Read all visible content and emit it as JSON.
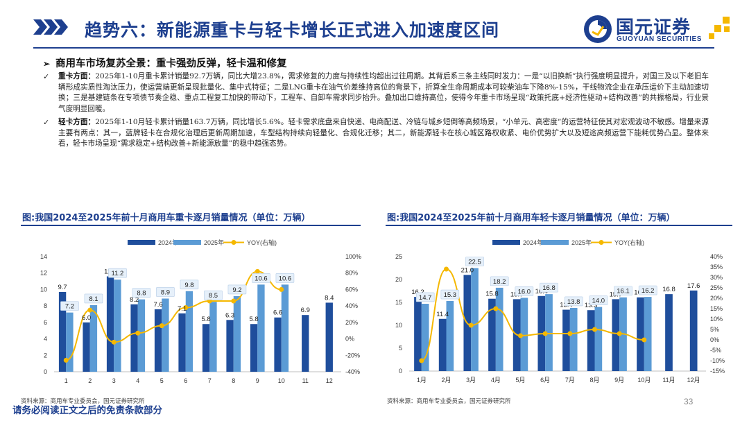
{
  "header": {
    "title": "趋势六：新能源重卡与轻卡增长正式进入加速度区间",
    "logo_cn": "国元证券",
    "logo_en": "GUOYUAN SECURITIES"
  },
  "section": {
    "subtitle": "商用车市场复苏全景：重卡强劲反弹，轻卡温和修复",
    "para1_label": "重卡方面：",
    "para1_text": "2025年1-10月重卡累计销量92.7万辆，同比大增23.8%，需求修复的力度与持续性均超出过往周期。其背后系三条主线同时发力：一是“以旧换新”执行强度明显提升，对国三及以下老旧车辆形成实质性淘汰压力，使运营端更新呈现批量化、集中式特征；二是LNG重卡在油气价差维持高位的背景下，折算全生命周期成本可较柴油车下降8%-15%，干线物流企业在承压运价下主动加速切换；三是基建链条在专项债节奏企稳、重点工程复工加快的带动下，工程车、自卸车需求同步抬升。叠加出口维持高位，使得今年重卡市场呈现“政策托底+经济性驱动+结构改善”的共振格局，行业景气度明显回暖。",
    "para2_label": "轻卡方面：",
    "para2_text": "2025年1-10月轻卡累计销量163.7万辆，同比增长5.6%。轻卡需求底盘来自快递、电商配送、冷链与城乡短倒等高频场景，“小单元、高密度”的运营特征使其对宏观波动不敏感。增量来源主要有两点：其一，蓝牌轻卡在合规化治理后更新周期加速，车型结构持续向轻量化、合规化迁移；其二，新能源轻卡在核心城区路权收紧、电价优势扩大以及短途高频运营下能耗优势凸显。整体来看，轻卡市场呈现“需求稳定+结构改善+新能源放量”的稳中趋强态势。"
  },
  "charts_meta": {
    "left_title": "图:我国2024至2025年前十月商用车重卡逐月销量情况（单位：万辆）",
    "right_title": "图:我国2024至2025年前十月商用车轻卡逐月销量情况（单位：万辆）",
    "left_source": "资料来源：商用车专业委员会，国元证券研究所",
    "right_source": "资料来源：商用车专业委员会，国元证券研究所"
  },
  "chart_data": [
    {
      "type": "bar",
      "title": "重卡逐月销量",
      "categories": [
        "1",
        "2",
        "3",
        "4",
        "5",
        "6",
        "7",
        "8",
        "9",
        "10",
        "11",
        "12"
      ],
      "series": [
        {
          "name": "2024年",
          "type": "bar",
          "values": [
            9.7,
            6.0,
            11.6,
            8.2,
            7.6,
            7.1,
            5.8,
            6.3,
            5.8,
            6.6,
            6.9,
            8.4
          ]
        },
        {
          "name": "2025年",
          "type": "bar",
          "values": [
            7.2,
            8.1,
            11.2,
            8.8,
            8.9,
            9.8,
            8.5,
            9.2,
            10.6,
            10.6,
            null,
            null
          ]
        },
        {
          "name": "YOY(右轴)",
          "type": "line",
          "axis": "right",
          "values": [
            -26,
            35,
            -4,
            7,
            16,
            38,
            46,
            46,
            82,
            60,
            null,
            null
          ]
        }
      ],
      "ylim": [
        0,
        14
      ],
      "yticks": [
        "0",
        "2",
        "4",
        "6",
        "8",
        "10",
        "12",
        "14"
      ],
      "y2lim": [
        -40,
        100
      ],
      "y2ticks": [
        "-40%",
        "-20%",
        "0%",
        "20%",
        "40%",
        "60%",
        "80%",
        "100%"
      ],
      "colors": {
        "bar2024": "#1f4e9c",
        "bar2025": "#5b9bd5",
        "line": "#f5b800"
      }
    },
    {
      "type": "bar",
      "title": "轻卡逐月销量",
      "categories": [
        "1月",
        "2月",
        "3月",
        "4月",
        "5月",
        "6月",
        "7月",
        "8月",
        "9月",
        "10月",
        "11月",
        "12月"
      ],
      "series": [
        {
          "name": "2024年",
          "type": "bar",
          "values": [
            16.2,
            11.4,
            21.0,
            15.8,
            15.7,
            16.4,
            13.4,
            13.3,
            15.7,
            16.1,
            16.8,
            17.6
          ]
        },
        {
          "name": "2025年",
          "type": "bar",
          "values": [
            14.7,
            15.3,
            22.5,
            18.2,
            16.0,
            16.8,
            13.8,
            14.0,
            16.1,
            16.2,
            null,
            null
          ]
        },
        {
          "name": "YOY(右轴)",
          "type": "line",
          "axis": "right",
          "values": [
            -10,
            34,
            7,
            15,
            2,
            3,
            3,
            5,
            3,
            0,
            null,
            null
          ]
        }
      ],
      "ylim": [
        0,
        25
      ],
      "yticks": [
        "0",
        "5",
        "10",
        "15",
        "20",
        "25"
      ],
      "y2lim": [
        -15,
        40
      ],
      "y2ticks": [
        "-15%",
        "-10%",
        "-5%",
        "0%",
        "5%",
        "10%",
        "15%",
        "20%",
        "25%",
        "30%",
        "35%",
        "40%"
      ],
      "colors": {
        "bar2024": "#1f4e9c",
        "bar2025": "#5b9bd5",
        "line": "#f5b800"
      }
    }
  ],
  "footer": {
    "page_number": "33",
    "disclaimer": "请务必阅读正文之后的免责条款部分"
  }
}
